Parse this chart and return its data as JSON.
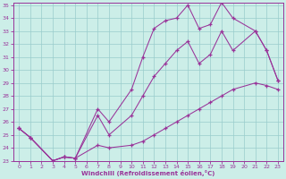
{
  "xlabel": "Windchill (Refroidissement éolien,°C)",
  "bg_color": "#cceee8",
  "line_color": "#993399",
  "grid_color": "#99cccc",
  "ylim": [
    23,
    35
  ],
  "xlim": [
    -0.5,
    23.5
  ],
  "yticks": [
    23,
    24,
    25,
    26,
    27,
    28,
    29,
    30,
    31,
    32,
    33,
    34,
    35
  ],
  "xticks": [
    0,
    1,
    2,
    3,
    4,
    5,
    6,
    7,
    8,
    9,
    10,
    11,
    12,
    13,
    14,
    15,
    16,
    17,
    18,
    19,
    20,
    21,
    22,
    23
  ],
  "line1_x": [
    0,
    1,
    3,
    4,
    5,
    7,
    8,
    10,
    11,
    12,
    13,
    14,
    15,
    16,
    17,
    18,
    19,
    21,
    22,
    23
  ],
  "line1_y": [
    25.5,
    24.8,
    23.0,
    23.3,
    23.2,
    27.0,
    26.0,
    28.5,
    31.0,
    33.2,
    33.8,
    34.0,
    35.0,
    33.2,
    33.5,
    35.2,
    34.0,
    33.0,
    31.5,
    29.2
  ],
  "line2_x": [
    0,
    1,
    3,
    4,
    5,
    7,
    8,
    10,
    11,
    12,
    13,
    14,
    15,
    16,
    17,
    18,
    19,
    21,
    22,
    23
  ],
  "line2_y": [
    25.5,
    24.8,
    23.0,
    23.3,
    23.2,
    24.2,
    24.0,
    24.2,
    24.5,
    25.0,
    25.5,
    26.0,
    26.5,
    27.0,
    27.5,
    28.0,
    28.5,
    29.0,
    28.8,
    28.5
  ],
  "line3_x": [
    0,
    1,
    3,
    4,
    5,
    7,
    8,
    10,
    11,
    12,
    13,
    14,
    15,
    16,
    17,
    18,
    19,
    21,
    22,
    23
  ],
  "line3_y": [
    25.5,
    24.8,
    23.0,
    23.3,
    23.2,
    26.5,
    25.0,
    26.5,
    28.0,
    29.5,
    30.5,
    31.5,
    32.2,
    30.5,
    31.2,
    33.0,
    31.5,
    33.0,
    31.5,
    29.2
  ]
}
